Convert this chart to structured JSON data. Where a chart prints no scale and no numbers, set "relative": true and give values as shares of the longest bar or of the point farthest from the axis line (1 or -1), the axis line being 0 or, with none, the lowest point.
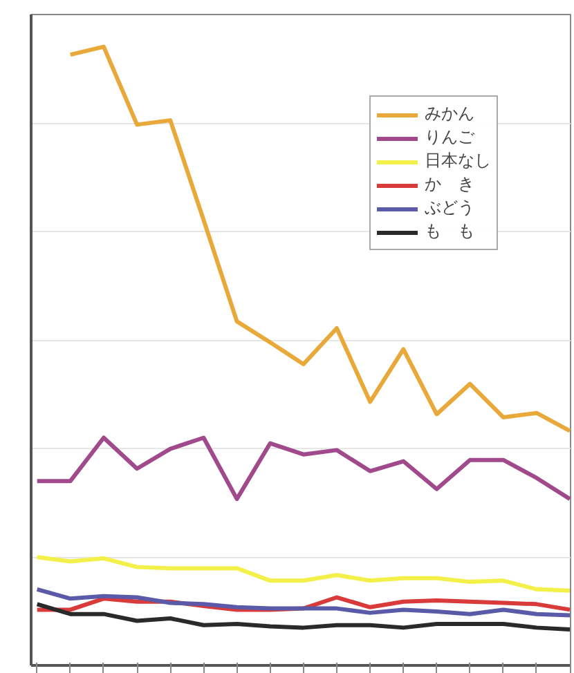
{
  "chart_data": {
    "type": "line",
    "relative": true,
    "grid": "y",
    "legend": "top right",
    "tick_labels": false,
    "categories": [
      null,
      null,
      null,
      null,
      null,
      null,
      null,
      null,
      null,
      null,
      null,
      null,
      null,
      null,
      null,
      null,
      null
    ],
    "series": [
      {
        "name": "みかん",
        "color": "#e8a93a",
        "values": [
          null,
          0.987,
          1.0,
          0.874,
          0.881,
          0.72,
          0.556,
          0.522,
          0.487,
          0.545,
          0.426,
          0.511,
          0.406,
          0.455,
          0.401,
          0.408,
          0.379
        ]
      },
      {
        "name": "りんご",
        "color": "#a04a8c",
        "values": [
          0.298,
          0.298,
          0.368,
          0.318,
          0.35,
          0.368,
          0.269,
          0.359,
          0.341,
          0.348,
          0.314,
          0.33,
          0.285,
          0.332,
          0.332,
          0.303,
          0.269
        ]
      },
      {
        "name": "日本なし",
        "color": "#f4f04a",
        "values": [
          0.175,
          0.168,
          0.173,
          0.159,
          0.157,
          0.157,
          0.157,
          0.137,
          0.137,
          0.146,
          0.137,
          0.141,
          0.141,
          0.135,
          0.137,
          0.123,
          0.121
        ]
      },
      {
        "name": "か　き",
        "color": "#d93b3b",
        "values": [
          0.09,
          0.09,
          0.108,
          0.103,
          0.103,
          0.096,
          0.09,
          0.09,
          0.092,
          0.11,
          0.094,
          0.103,
          0.105,
          0.103,
          0.101,
          0.099,
          0.09
        ]
      },
      {
        "name": "ぶどう",
        "color": "#5a5aa8",
        "values": [
          0.123,
          0.108,
          0.112,
          0.11,
          0.101,
          0.099,
          0.094,
          0.092,
          0.092,
          0.092,
          0.085,
          0.09,
          0.087,
          0.083,
          0.09,
          0.083,
          0.081
        ]
      },
      {
        "name": "も　も",
        "color": "#2a2a2a",
        "values": [
          0.099,
          0.083,
          0.083,
          0.072,
          0.076,
          0.065,
          0.067,
          0.063,
          0.061,
          0.065,
          0.065,
          0.061,
          0.067,
          0.067,
          0.067,
          0.061,
          0.058
        ]
      }
    ]
  }
}
